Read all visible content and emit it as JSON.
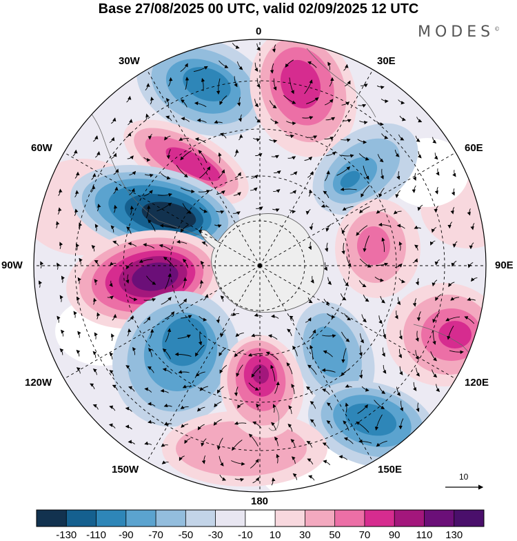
{
  "title": "Base 27/08/2025 00 UTC, valid 02/09/2025 12 UTC",
  "brand": "MODES",
  "brand_mark": "©",
  "longitude_labels": {
    "top": "0",
    "bottom": "180",
    "left": "90W",
    "right": "90E",
    "upper_left_1": "30W",
    "upper_left_2": "60W",
    "upper_right_1": "30E",
    "upper_right_2": "60E",
    "lower_left_1": "120W",
    "lower_left_2": "150W",
    "lower_right_1": "120E",
    "lower_right_2": "150E"
  },
  "vector_scale_label": "10",
  "colorbar": {
    "labels": [
      "-130",
      "-110",
      "-90",
      "-70",
      "-50",
      "-30",
      "-10",
      "10",
      "30",
      "50",
      "70",
      "90",
      "110",
      "130"
    ],
    "colors": [
      "#12324f",
      "#15608f",
      "#2e86b8",
      "#5ba3cf",
      "#93bddd",
      "#c3d4e8",
      "#e8e6f1",
      "#ffffff",
      "#f8d8de",
      "#f3a9bf",
      "#ec6fa6",
      "#d62c8f",
      "#a3177c",
      "#6b0f78",
      "#4a0f6b"
    ]
  },
  "anomaly_centers": [
    {
      "name": "neg-center-30w",
      "sign": "negative",
      "strength": 3
    },
    {
      "name": "pos-center-15e",
      "sign": "positive",
      "strength": 4
    },
    {
      "name": "pos-center-45w",
      "sign": "positive",
      "strength": 4
    },
    {
      "name": "neg-center-50e",
      "sign": "negative",
      "strength": 3
    },
    {
      "name": "neg-center-70w",
      "sign": "negative",
      "strength": 6
    },
    {
      "name": "pos-center-85e",
      "sign": "positive",
      "strength": 3
    },
    {
      "name": "pos-center-95w",
      "sign": "positive",
      "strength": 7
    },
    {
      "name": "pos-center-115e",
      "sign": "positive",
      "strength": 4
    },
    {
      "name": "neg-center-130w",
      "sign": "negative",
      "strength": 3
    },
    {
      "name": "neg-center-150e",
      "sign": "negative",
      "strength": 3
    },
    {
      "name": "pos-center-175w",
      "sign": "positive",
      "strength": 5
    },
    {
      "name": "neg-center-140e",
      "sign": "negative",
      "strength": 4
    },
    {
      "name": "pos-center-180-outer",
      "sign": "positive",
      "strength": 2
    }
  ]
}
